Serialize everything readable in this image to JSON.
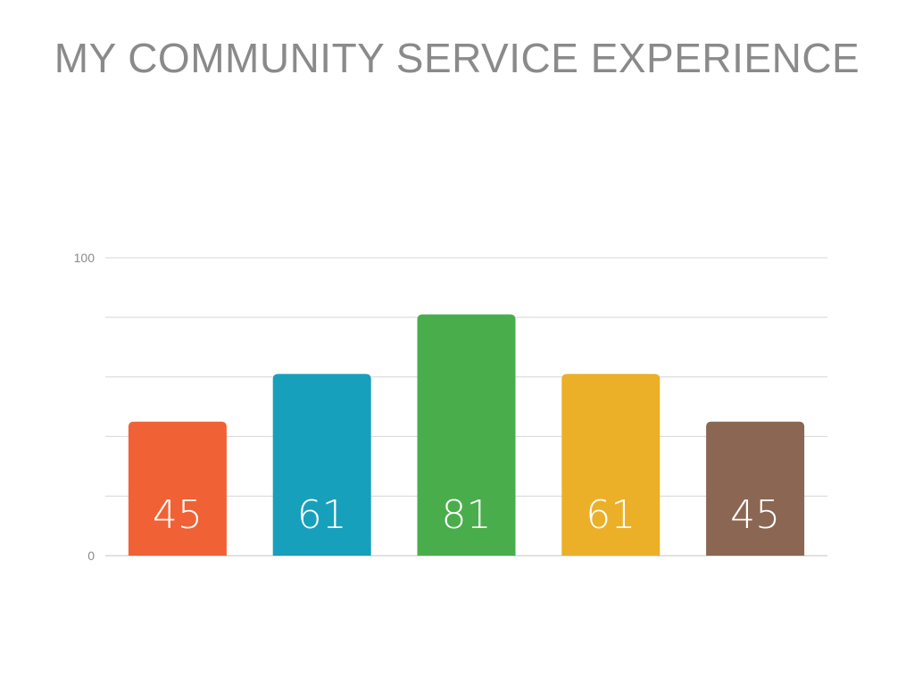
{
  "slide": {
    "title": "MY COMMUNITY SERVICE EXPERIENCE"
  },
  "chart_data": {
    "type": "bar",
    "title": "",
    "categories": [
      "",
      "",
      "",
      "",
      ""
    ],
    "values": [
      45,
      61,
      81,
      61,
      45
    ],
    "colors": [
      "#f06135",
      "#17a0bc",
      "#4aad4c",
      "#ebb028",
      "#8b6652"
    ],
    "data_labels": [
      "45",
      "61",
      "81",
      "61",
      "45"
    ],
    "xlabel": "",
    "ylabel": "",
    "ylim": [
      0,
      100
    ],
    "y_tick_labels": [
      "0",
      "100"
    ],
    "gridlines": [
      0,
      20,
      40,
      60,
      80,
      100
    ],
    "grid": true,
    "legend": "none"
  }
}
